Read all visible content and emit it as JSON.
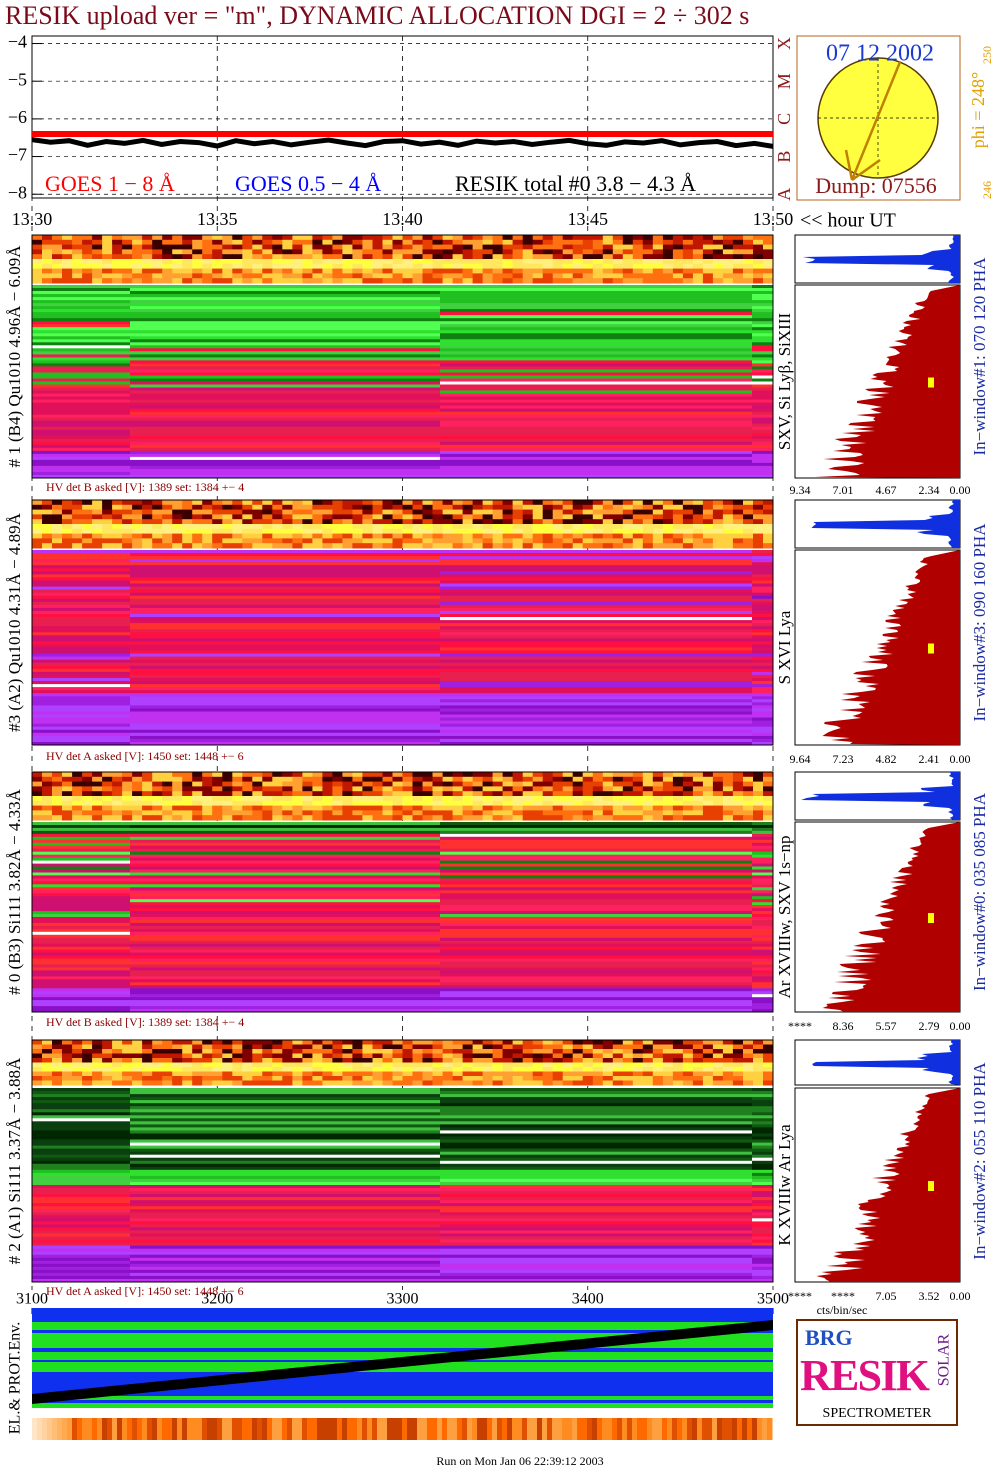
{
  "title": "RESIK upload ver = \"m\", DYNAMIC ALLOCATION  DGI =   2 ÷ 302 s",
  "chart_data": {
    "type": "line",
    "x": [
      13.3,
      13.305,
      13.31,
      13.315,
      13.32,
      13.325,
      13.33,
      13.335,
      13.34,
      13.345,
      13.35,
      13.355,
      13.36,
      13.365,
      13.37,
      13.375,
      13.38,
      13.385,
      13.39,
      13.395,
      13.4,
      13.405,
      13.41,
      13.415,
      13.42,
      13.425,
      13.43,
      13.435,
      13.44,
      13.445,
      13.45,
      13.455,
      13.46,
      13.465,
      13.47,
      13.475,
      13.48,
      13.485,
      13.49,
      13.495,
      13.5
    ],
    "series": [
      {
        "name": "GOES 1 − 8 Å",
        "color": "#ff0000",
        "values": [
          -6.4,
          -6.4,
          -6.4,
          -6.4,
          -6.4,
          -6.4,
          -6.4,
          -6.4,
          -6.4,
          -6.4,
          -6.4,
          -6.4,
          -6.4,
          -6.4,
          -6.4,
          -6.4,
          -6.4,
          -6.4,
          -6.4,
          -6.4,
          -6.4,
          -6.4,
          -6.4,
          -6.4,
          -6.4,
          -6.4,
          -6.4,
          -6.4,
          -6.4,
          -6.4,
          -6.4,
          -6.4,
          -6.4,
          -6.4,
          -6.4,
          -6.4,
          -6.4,
          -6.4,
          -6.4,
          -6.4,
          -6.4
        ]
      },
      {
        "name": "GOES 0.5 − 4 Å",
        "color": "#0000ff",
        "values": [
          null,
          null,
          null,
          null,
          null,
          null,
          null,
          null,
          null,
          null,
          null,
          null,
          null,
          null,
          null,
          null,
          null,
          null,
          null,
          null,
          null,
          null,
          null,
          null,
          null,
          null,
          null,
          null,
          null,
          null,
          null,
          null,
          null,
          null,
          null,
          null,
          null,
          null,
          null,
          null,
          null
        ]
      },
      {
        "name": "RESIK total #0  3.8 − 4.3 Å",
        "color": "#000000",
        "values": [
          -6.55,
          -6.62,
          -6.58,
          -6.7,
          -6.6,
          -6.65,
          -6.57,
          -6.68,
          -6.6,
          -6.63,
          -6.72,
          -6.58,
          -6.66,
          -6.6,
          -6.69,
          -6.62,
          -6.56,
          -6.64,
          -6.71,
          -6.6,
          -6.58,
          -6.67,
          -6.62,
          -6.7,
          -6.59,
          -6.64,
          -6.6,
          -6.68,
          -6.62,
          -6.57,
          -6.66,
          -6.7,
          -6.61,
          -6.64,
          -6.58,
          -6.69,
          -6.63,
          -6.6,
          -6.71,
          -6.65,
          -6.73
        ]
      }
    ],
    "xlim": [
      13.3,
      13.5
    ],
    "xticks": [
      {
        "value": 13.3,
        "label": "13.30"
      },
      {
        "value": 13.35,
        "label": "13.35"
      },
      {
        "value": 13.4,
        "label": "13.40"
      },
      {
        "value": 13.45,
        "label": "13.45"
      },
      {
        "value": 13.5,
        "label": "13.50"
      }
    ],
    "x_label": "<< hour UT",
    "ylim": [
      -8.1,
      -3.8
    ],
    "yticks": [
      {
        "value": -4,
        "label": "−4"
      },
      {
        "value": -5,
        "label": "−5"
      },
      {
        "value": -6,
        "label": "−6"
      },
      {
        "value": -7,
        "label": "−7"
      },
      {
        "value": -8,
        "label": "−8"
      }
    ],
    "class_ticks": [
      {
        "value": -8,
        "label": "A"
      },
      {
        "value": -7,
        "label": "B"
      },
      {
        "value": -6,
        "label": "C"
      },
      {
        "value": -5,
        "label": "M"
      },
      {
        "value": -4,
        "label": "X"
      }
    ],
    "grid": true
  },
  "sun": {
    "date": "07 12 2002",
    "phi": "phi = 248°",
    "top": "250",
    "bottom": "246",
    "dump": "Dump: 07556"
  },
  "panels": [
    {
      "label": "# 1 (B4) Qu1010 4.96Å − 6.09Å",
      "lines": "SXV, Si Lyβ, SiXIII",
      "window": "In−window#1:  070 120 PHA",
      "hv": "HV det B asked [V]:  1389 set:  1384  +−    4",
      "scale": [
        "9.34",
        "7.01",
        "4.67",
        "2.34",
        "0.00"
      ]
    },
    {
      "label": "#3 (A2) Qu1010  4.31Å − 4.89Å",
      "lines": "S XVI Lya",
      "window": "In−window#3:  090 160 PHA",
      "hv": "HV det A asked [V]:  1450 set:  1448  +−    6",
      "scale": [
        "9.64",
        "7.23",
        "4.82",
        "2.41",
        "0.00"
      ]
    },
    {
      "label": "# 0 (B3) Si111  3.82Å − 4.33Å",
      "lines": "Ar XVIIIw, SXV 1s−np",
      "window": "In−window#0:  035 085 PHA",
      "hv": "HV det B asked [V]:  1389 set:  1384  +−    4",
      "scale": [
        "****",
        "8.36",
        "5.57",
        "2.79",
        "0.00"
      ]
    },
    {
      "label": "# 2 (A1) Si111  3.37Å − 3.88Å",
      "lines": "K XVIIIw  Ar Lya",
      "window": "In−window#2:  055 110 PHA",
      "hv": "HV det A asked [V]:  1450 set:  1448  +−    6",
      "scale": [
        "****",
        "****",
        "7.05",
        "3.52",
        "0.00"
      ]
    }
  ],
  "units": "cts/bin/sec",
  "env": {
    "label": "EL.& PROT.Env.",
    "xlim": [
      3100,
      3500
    ],
    "xticks": [
      3100,
      3200,
      3300,
      3400,
      3500
    ]
  },
  "logo": {
    "top": "BRG",
    "main": "RESIK",
    "side": "SOLAR",
    "bottom": "SPECTROMETER"
  },
  "footer": "Run on Mon Jan 06 22:39:12 2003"
}
